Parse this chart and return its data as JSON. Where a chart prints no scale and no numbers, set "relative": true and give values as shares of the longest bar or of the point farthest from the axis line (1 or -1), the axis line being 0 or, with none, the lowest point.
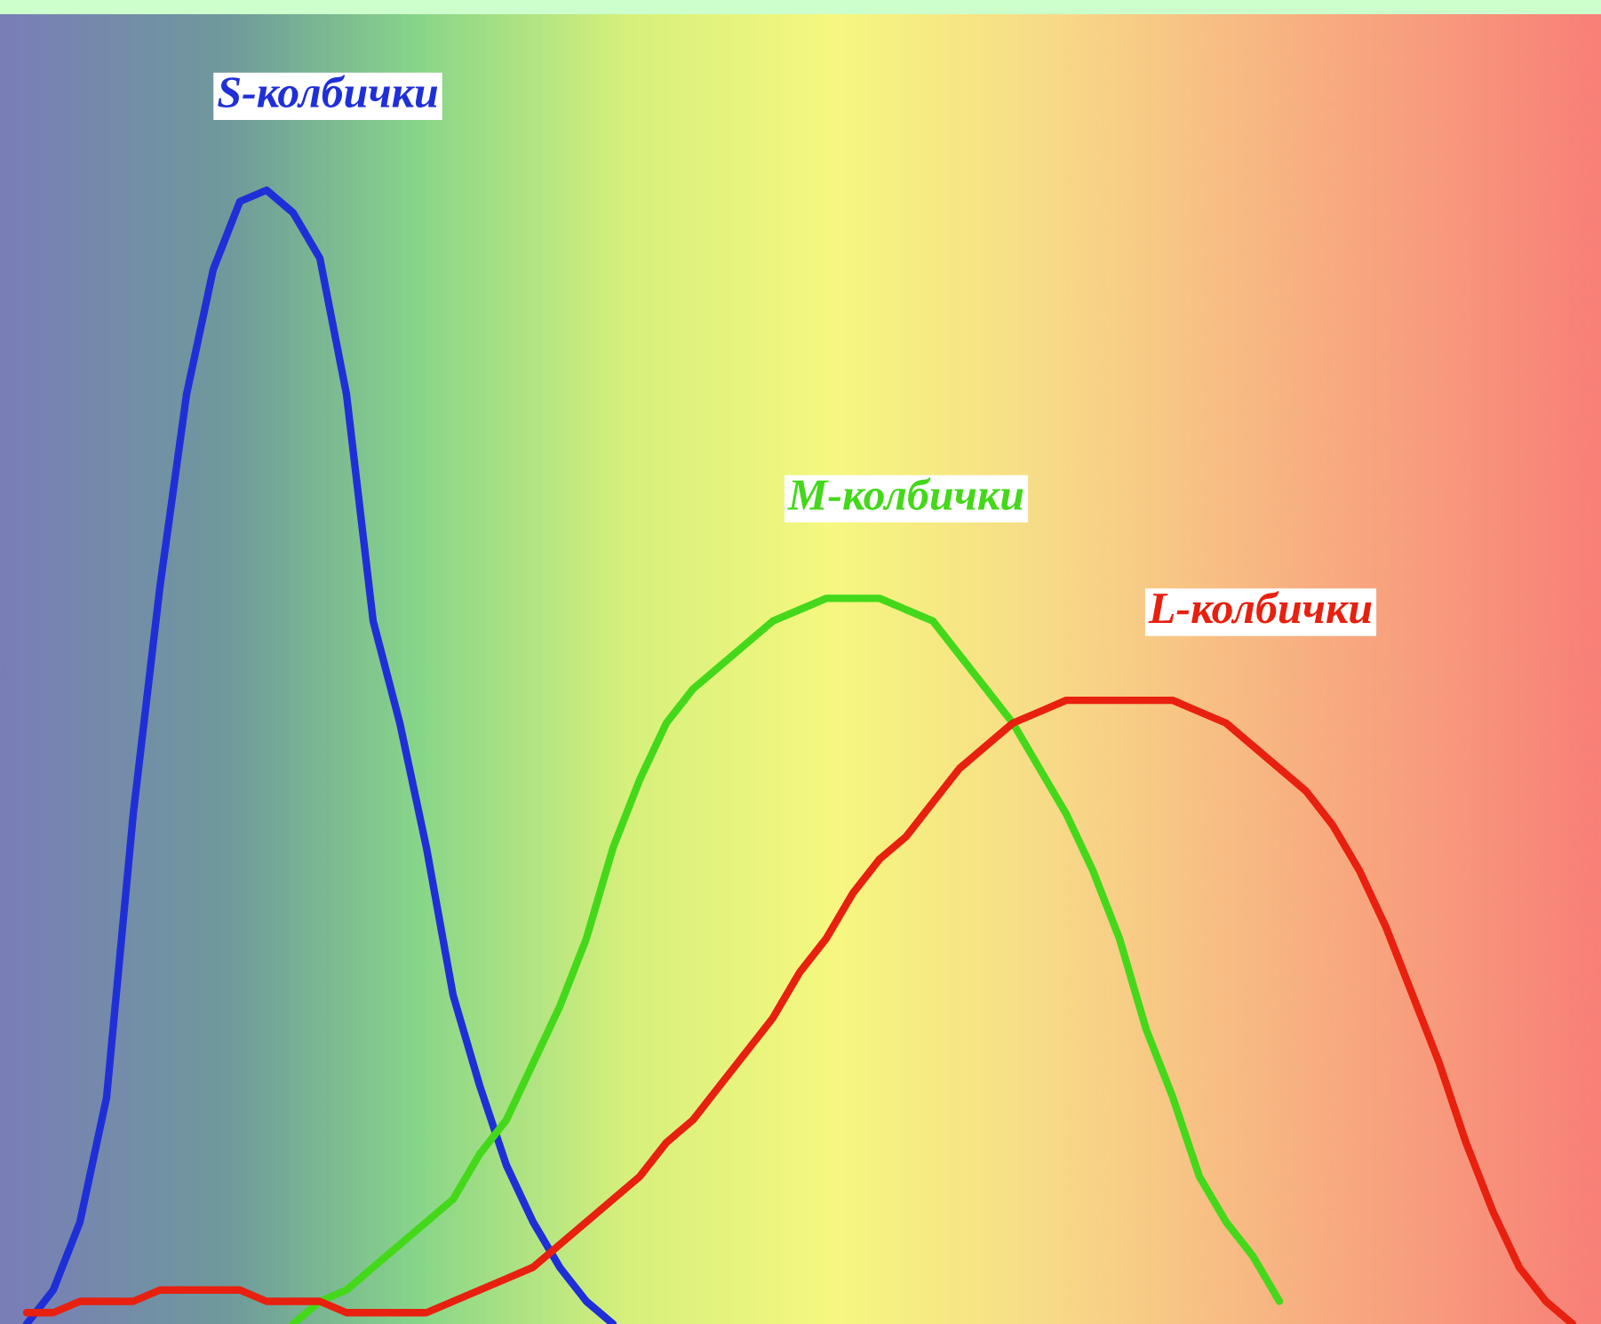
{
  "chart_data": {
    "type": "line",
    "relative": true,
    "line_style": "solid",
    "marker": "none",
    "legend": false,
    "categories": [
      null,
      null,
      null,
      null,
      null,
      null,
      null,
      null,
      null,
      null,
      null,
      null,
      null,
      null,
      null,
      null,
      null,
      null,
      null,
      null,
      null,
      null,
      null,
      null,
      null,
      null,
      null,
      null,
      null,
      null,
      null,
      null,
      null,
      null,
      null,
      null,
      null,
      null,
      null,
      null,
      null,
      null,
      null,
      null,
      null,
      null,
      null,
      null,
      null,
      null,
      null,
      null,
      null,
      null,
      null,
      null,
      null,
      null,
      null,
      null,
      null
    ],
    "series": [
      {
        "name": "S-колбички",
        "color": "#1f2fd8",
        "values": [
          null,
          0,
          0.03,
          0.09,
          0.2,
          0.45,
          0.65,
          0.82,
          0.93,
          0.99,
          1,
          0.98,
          0.94,
          0.82,
          0.62,
          0.53,
          0.42,
          0.29,
          0.21,
          0.14,
          0.09,
          0.05,
          0.02,
          0,
          null,
          null,
          null,
          null,
          null,
          null,
          null,
          null,
          null,
          null,
          null,
          null,
          null,
          null,
          null,
          null,
          null,
          null,
          null,
          null,
          null,
          null,
          null,
          null,
          null,
          null,
          null,
          null,
          null,
          null,
          null,
          null,
          null,
          null,
          null,
          null,
          null
        ]
      },
      {
        "name": "M-колбички",
        "color": "#44d81a",
        "values": [
          null,
          null,
          null,
          null,
          null,
          null,
          null,
          null,
          null,
          null,
          null,
          0,
          0.02,
          0.03,
          0.05,
          0.07,
          0.09,
          0.11,
          0.15,
          0.18,
          0.23,
          0.28,
          0.34,
          0.42,
          0.48,
          0.53,
          0.56,
          0.58,
          0.6,
          0.62,
          0.63,
          0.64,
          0.64,
          0.64,
          0.63,
          0.62,
          0.59,
          0.56,
          0.53,
          0.49,
          0.45,
          0.4,
          0.34,
          0.26,
          0.2,
          0.13,
          0.09,
          0.06,
          0.02,
          null,
          null,
          null,
          null,
          null,
          null,
          null,
          null,
          null,
          null,
          null,
          null
        ]
      },
      {
        "name": "L-колбички",
        "color": "#e8200f",
        "values": [
          null,
          0.01,
          0.01,
          0.02,
          0.02,
          0.02,
          0.03,
          0.03,
          0.03,
          0.03,
          0.02,
          0.02,
          0.02,
          0.01,
          0.01,
          0.01,
          0.01,
          0.02,
          0.03,
          0.04,
          0.05,
          0.07,
          0.09,
          0.11,
          0.13,
          0.16,
          0.18,
          0.21,
          0.24,
          0.27,
          0.31,
          0.34,
          0.38,
          0.41,
          0.43,
          0.46,
          0.49,
          0.51,
          0.53,
          0.54,
          0.55,
          0.55,
          0.55,
          0.55,
          0.55,
          0.54,
          0.53,
          0.51,
          0.49,
          0.47,
          0.44,
          0.4,
          0.35,
          0.29,
          0.23,
          0.16,
          0.1,
          0.05,
          0.02,
          0,
          null
        ]
      }
    ]
  }
}
